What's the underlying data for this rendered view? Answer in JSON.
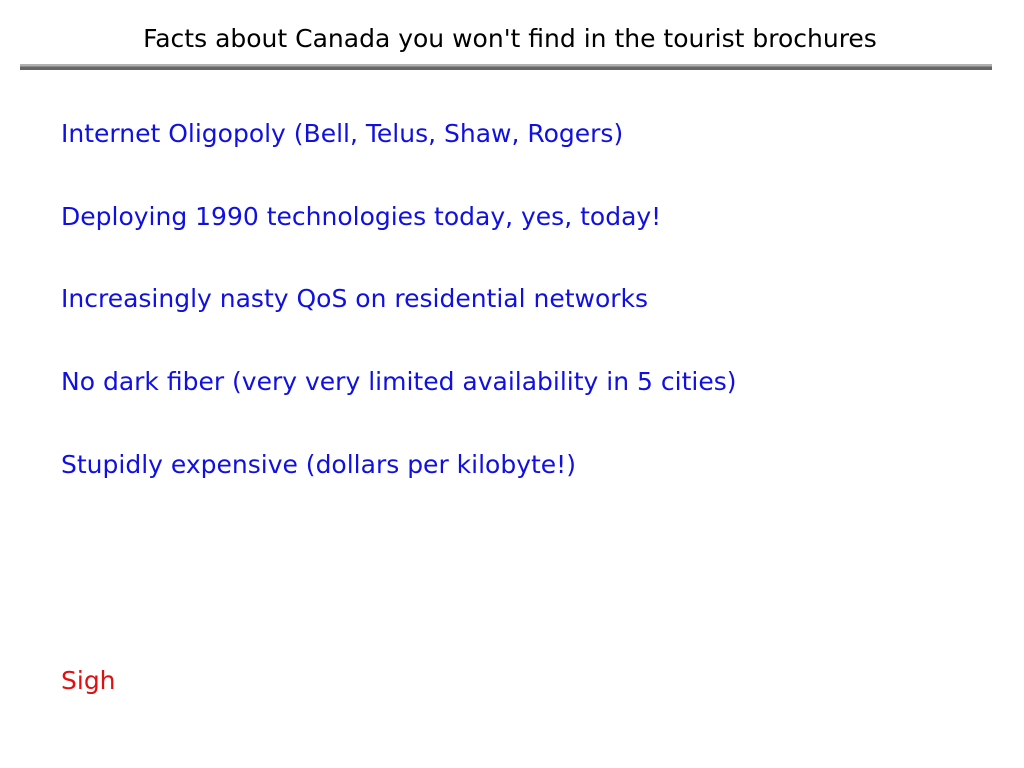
{
  "slide": {
    "title": "Facts about Canada you won't find in the tourist brochures",
    "items": [
      "Internet Oligopoly (Bell, Telus, Shaw, Rogers)",
      "Deploying 1990 technologies today, yes, today!",
      "Increasingly nasty QoS on residential networks",
      "No dark fiber (very very limited availability in 5 cities)",
      "Stupidly expensive (dollars per kilobyte!)"
    ],
    "closing": "Sigh",
    "colors": {
      "items": "#1010e0",
      "closing": "#e01010",
      "rule": "#666666"
    }
  }
}
